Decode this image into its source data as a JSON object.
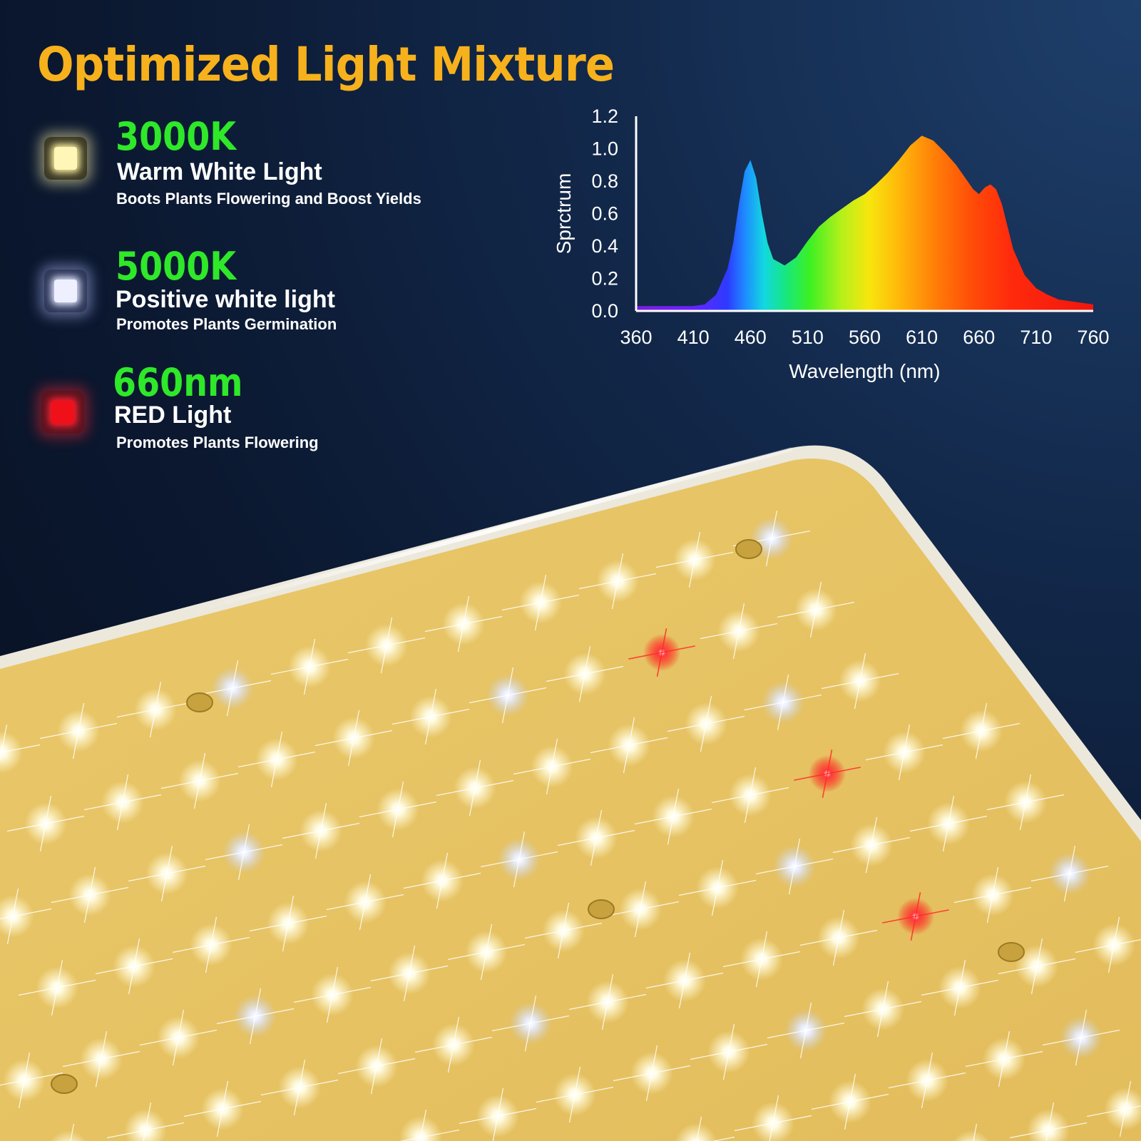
{
  "title": "Optimized Light Mixture",
  "features": [
    {
      "value": "3000K",
      "name": "Warm White Light",
      "desc": "Boots Plants Flowering and Boost Yields",
      "icon": "warm-white-led-icon"
    },
    {
      "value": "5000K",
      "name": "Positive white light",
      "desc": "Promotes Plants Germination",
      "icon": "white-led-icon"
    },
    {
      "value": "660nm",
      "name": "RED Light",
      "desc": "Promotes Plants Flowering",
      "icon": "red-led-icon"
    }
  ],
  "colors": {
    "title": "#f6b11c",
    "value": "#2ee829",
    "panel": "#e8c468"
  },
  "chart_data": {
    "type": "area",
    "title": "",
    "xlabel": "Wavelength (nm)",
    "ylabel": "Sprctrum",
    "xlim": [
      360,
      760
    ],
    "ylim": [
      0,
      1.2
    ],
    "xticks": [
      360,
      410,
      460,
      510,
      560,
      610,
      660,
      710,
      760
    ],
    "yticks": [
      "0.0",
      "0.2",
      "0.4",
      "0.6",
      "0.8",
      "1.0",
      "1.2"
    ],
    "grid": false,
    "fill": "spectral gradient (violet to red)",
    "series": [
      {
        "x": [
          360,
          380,
          400,
          410,
          420,
          430,
          440,
          445,
          450,
          455,
          460,
          465,
          470,
          475,
          480,
          490,
          500,
          510,
          520,
          530,
          540,
          550,
          560,
          570,
          580,
          590,
          600,
          605,
          610,
          620,
          630,
          640,
          650,
          655,
          660,
          665,
          670,
          675,
          680,
          690,
          700,
          710,
          720,
          730,
          740,
          750,
          760
        ],
        "y": [
          0.03,
          0.03,
          0.03,
          0.03,
          0.04,
          0.1,
          0.26,
          0.42,
          0.66,
          0.86,
          0.93,
          0.82,
          0.6,
          0.42,
          0.32,
          0.28,
          0.33,
          0.43,
          0.52,
          0.58,
          0.63,
          0.68,
          0.72,
          0.78,
          0.85,
          0.93,
          1.02,
          1.05,
          1.08,
          1.05,
          0.98,
          0.9,
          0.8,
          0.75,
          0.72,
          0.76,
          0.78,
          0.75,
          0.66,
          0.38,
          0.22,
          0.14,
          0.1,
          0.07,
          0.06,
          0.05,
          0.04
        ]
      }
    ]
  }
}
